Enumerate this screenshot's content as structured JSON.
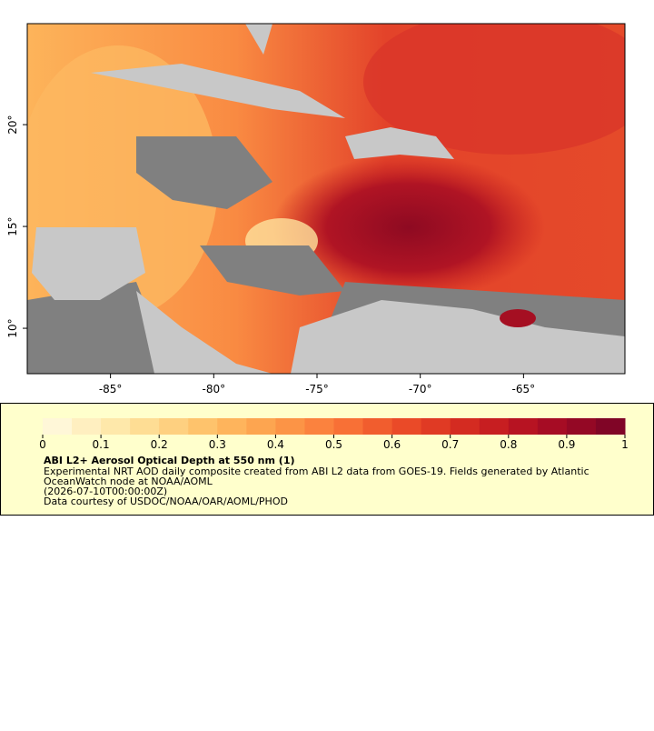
{
  "map": {
    "lon_range": [
      -89.03,
      -60.09
    ],
    "lat_range": [
      7.77,
      24.96
    ],
    "lon_ticks": [
      {
        "value": -85,
        "label": "-85°"
      },
      {
        "value": -80,
        "label": "-80°"
      },
      {
        "value": -75,
        "label": "-75°"
      },
      {
        "value": -70,
        "label": "-70°"
      },
      {
        "value": -65,
        "label": "-65°"
      }
    ],
    "lat_ticks": [
      {
        "value": 20,
        "label": "20°"
      },
      {
        "value": 15,
        "label": "15°"
      },
      {
        "value": 10,
        "label": "10°"
      }
    ]
  },
  "colorbar": {
    "range": [
      0,
      1
    ],
    "ticks": [
      0,
      0.1,
      0.2,
      0.3,
      0.4,
      0.5,
      0.6,
      0.7,
      0.8,
      0.9,
      1
    ],
    "colors": [
      "#fff7d8",
      "#ffefc0",
      "#fee8aa",
      "#fedd94",
      "#fed080",
      "#fec36c",
      "#feb45c",
      "#fda550",
      "#fc9446",
      "#fb823e",
      "#f87036",
      "#f15d2e",
      "#ea4a28",
      "#e03a24",
      "#d42b21",
      "#c71e21",
      "#b71322",
      "#a60c24",
      "#940825",
      "#800526"
    ]
  },
  "legend": {
    "title": "ABI L2+ Aerosol Optical Depth at 550 nm (1)",
    "lines": [
      "Experimental NRT AOD daily composite created from ABI L2 data from GOES-19. Fields generated by Atlantic",
      "OceanWatch node at NOAA/AOML",
      "(2026-07-10T00:00:00Z)",
      "Data courtesy of USDOC/NOAA/OAR/AOML/PHOD"
    ]
  }
}
